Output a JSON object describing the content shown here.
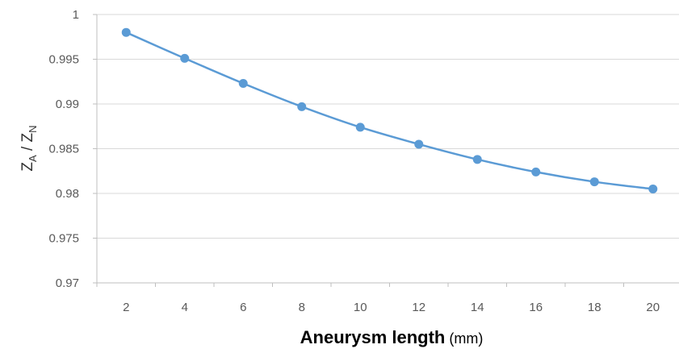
{
  "chart_data": {
    "type": "line",
    "title": "",
    "xlabel": "Aneurysm length",
    "xlabel_unit": "(mm)",
    "ylabel": {
      "base1": "Z",
      "sub1": "A",
      "sep": " / ",
      "base2": "Z",
      "sub2": "N"
    },
    "x": [
      2,
      4,
      6,
      8,
      10,
      12,
      14,
      16,
      18,
      20
    ],
    "x_tick_labels": [
      "2",
      "4",
      "6",
      "8",
      "10",
      "12",
      "14",
      "16",
      "18",
      "20"
    ],
    "series": [
      {
        "values": [
          0.998,
          0.9951,
          0.9923,
          0.9897,
          0.9874,
          0.9855,
          0.9838,
          0.9824,
          0.9813,
          0.9805
        ],
        "color": "#5B9BD5",
        "marker": "circle"
      }
    ],
    "ylim": [
      0.97,
      1
    ],
    "y_ticks": [
      0.97,
      0.975,
      0.98,
      0.985,
      0.99,
      0.995,
      1
    ],
    "y_tick_labels": [
      "0.97",
      "0.975",
      "0.98",
      "0.985",
      "0.99",
      "0.995",
      "1"
    ],
    "grid": "horizontal",
    "legend": "none"
  }
}
